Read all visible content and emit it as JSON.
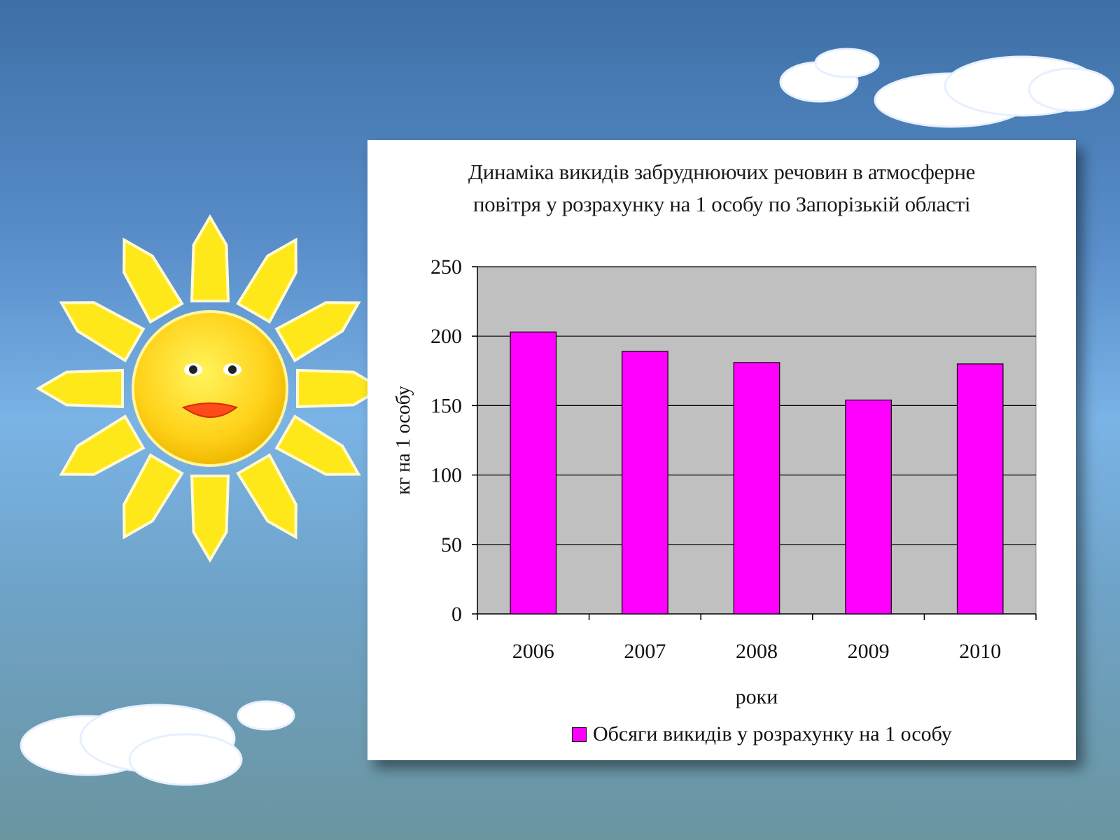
{
  "chart_data": {
    "type": "bar",
    "title_lines": [
      "Динаміка викидів забруднюючих речовин в атмосферне",
      "повітря у розрахунку на 1 особу по Запорізькій області"
    ],
    "categories": [
      "2006",
      "2007",
      "2008",
      "2009",
      "2010"
    ],
    "series": [
      {
        "name": "Обсяги викидів у розрахунку на 1 особу",
        "values": [
          203,
          189,
          181,
          154,
          180
        ],
        "color": "#ff00ff"
      }
    ],
    "xlabel": "роки",
    "ylabel": "кг на 1 особу",
    "ylim": [
      0,
      250
    ],
    "yticks": [
      0,
      50,
      100,
      150,
      200,
      250
    ],
    "plot_background": "#c0c0c0",
    "grid": true,
    "legend_position": "bottom"
  }
}
